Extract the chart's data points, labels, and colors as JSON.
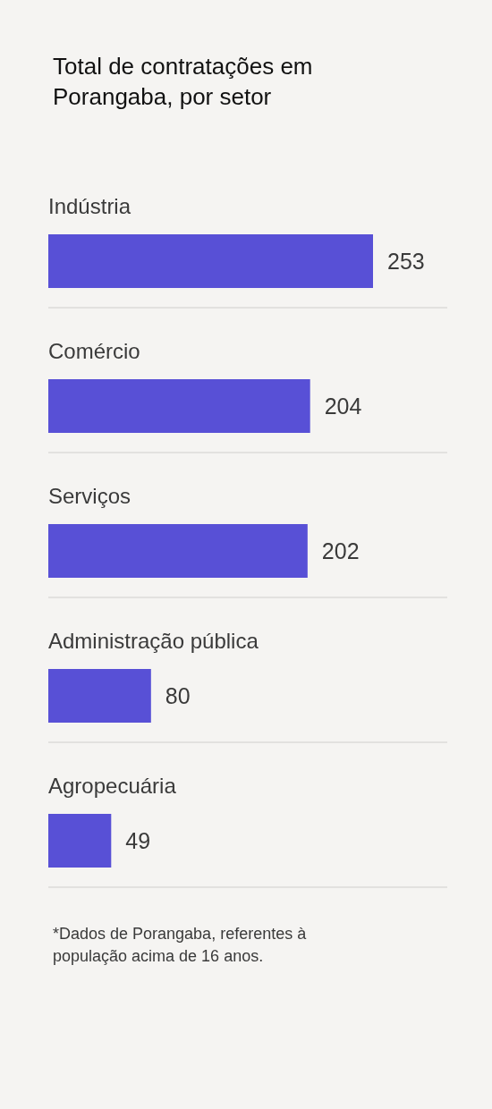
{
  "chart_data": {
    "type": "bar",
    "orientation": "horizontal",
    "title": "Total de contratações em Porangaba, por setor",
    "categories": [
      "Indústria",
      "Comércio",
      "Serviços",
      "Administração pública",
      "Agropecuária"
    ],
    "values": [
      253,
      204,
      202,
      80,
      49
    ],
    "color": "#5850d6",
    "data_labels": true,
    "grid": "y",
    "annotations": [
      "*Dados de Porangaba, referentes à população acima de 16 anos."
    ]
  }
}
